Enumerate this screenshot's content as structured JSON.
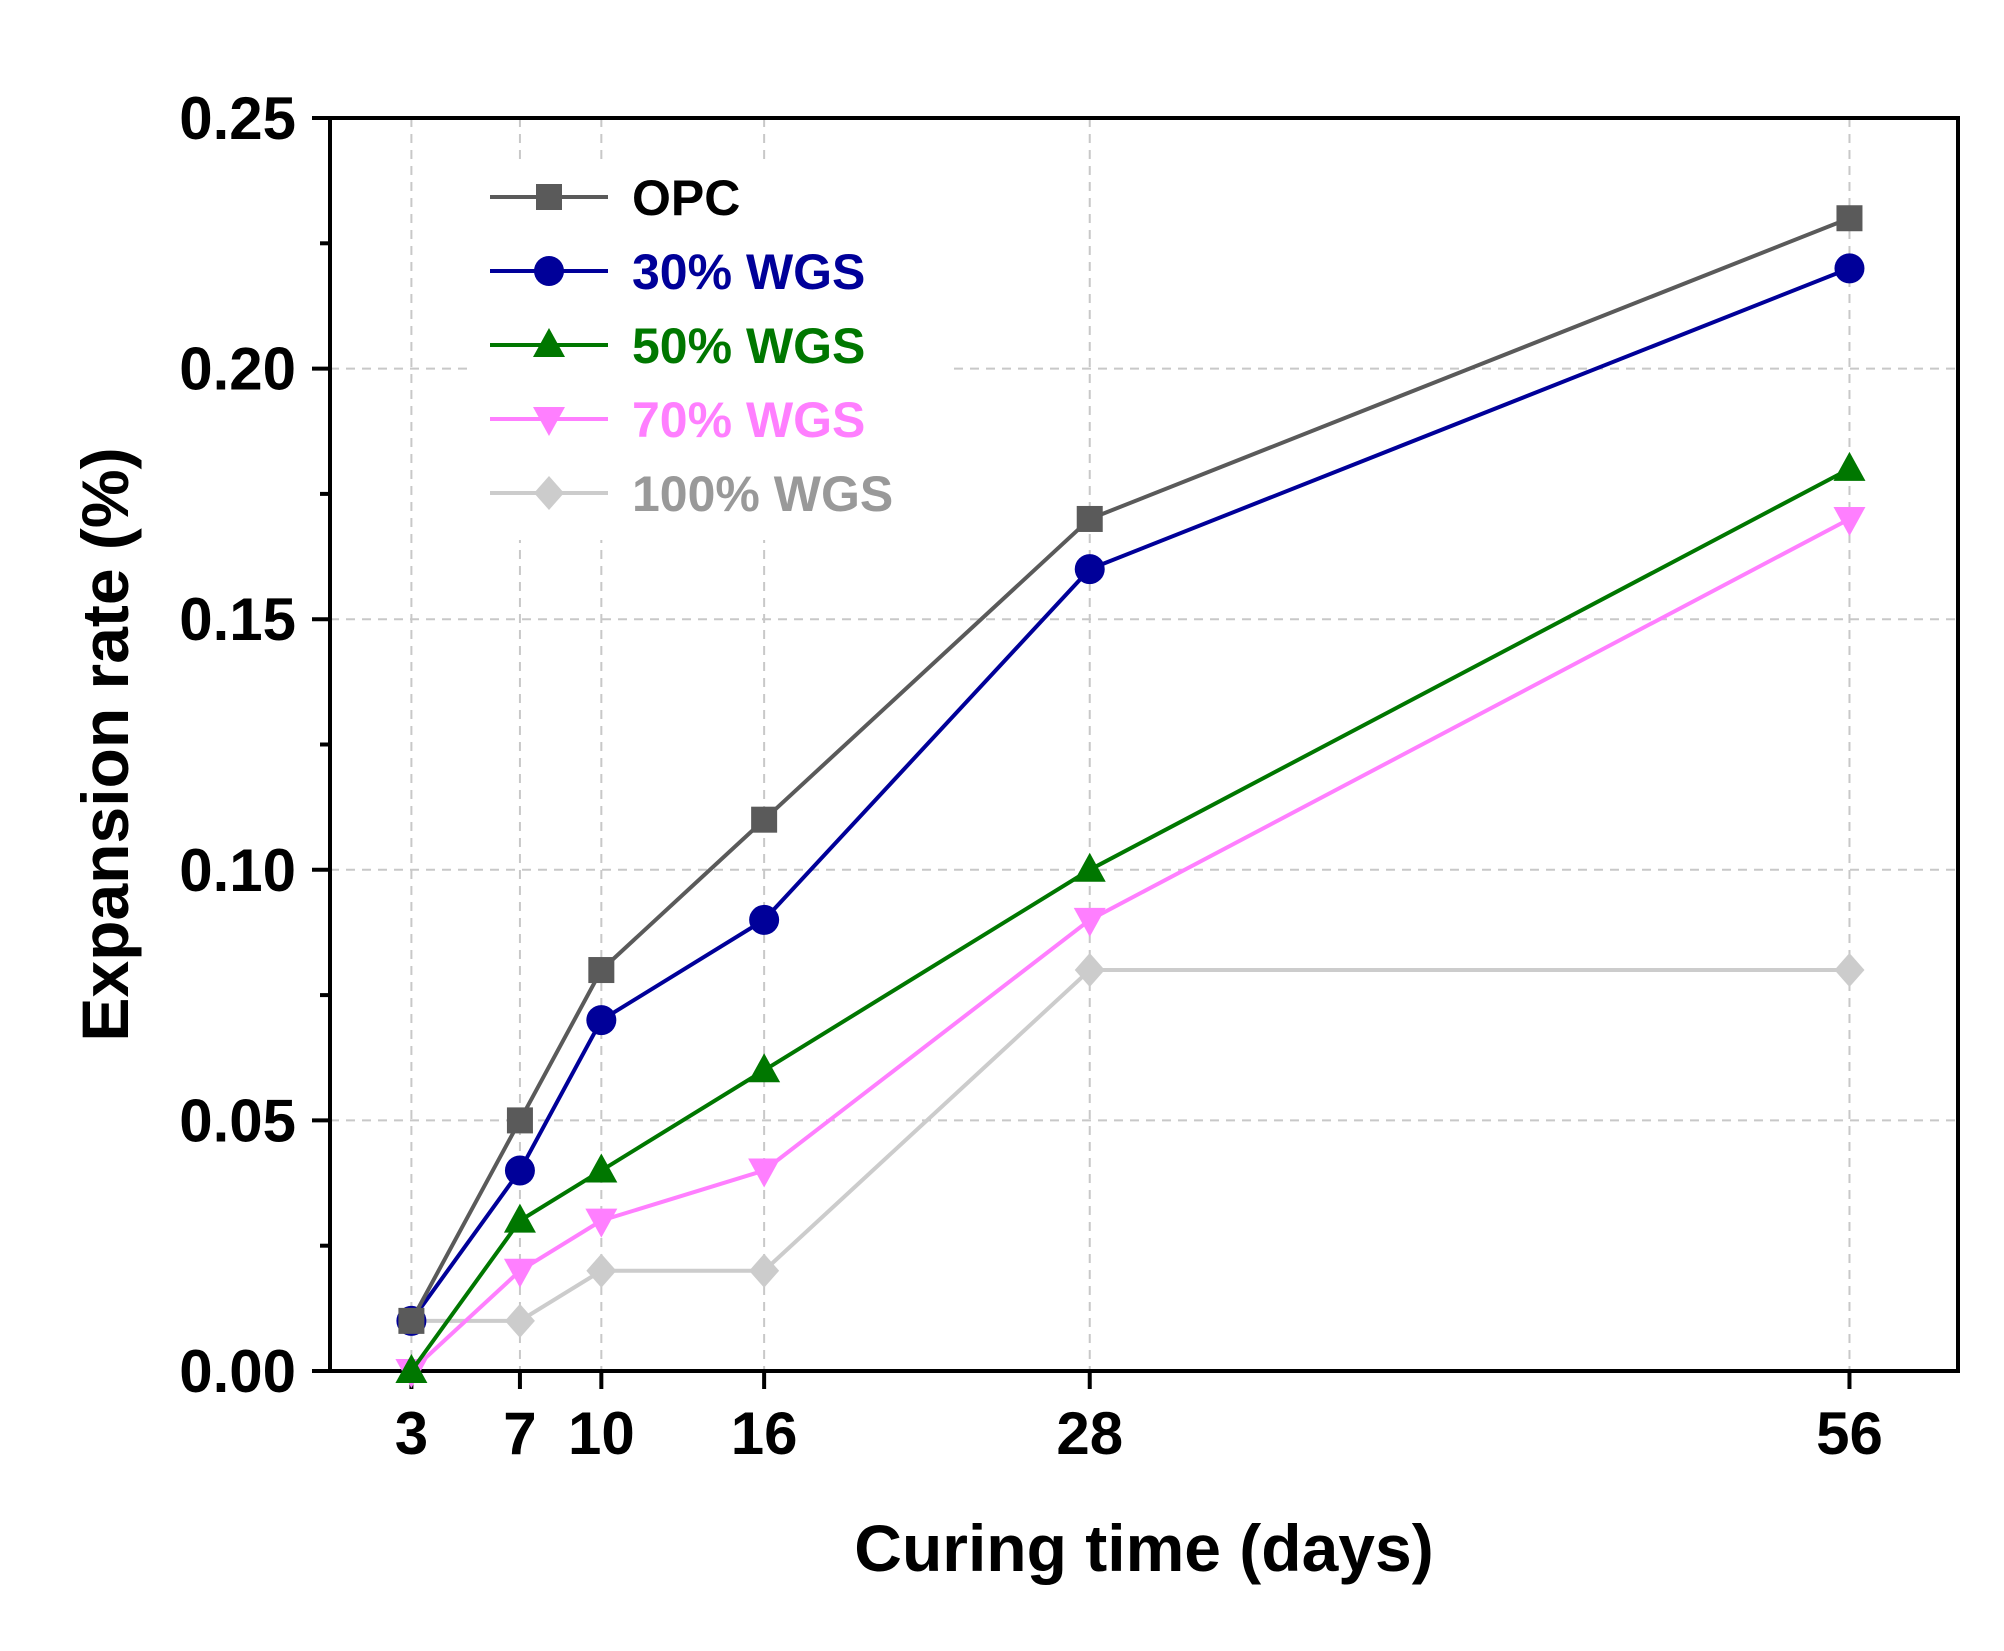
{
  "chart_data": {
    "type": "line",
    "title": "",
    "xlabel": "Curing time (days)",
    "ylabel": "Expansion rate (%)",
    "x": [
      3,
      7,
      10,
      16,
      28,
      56
    ],
    "x_tick_labels": [
      "3",
      "7",
      "10",
      "16",
      "28",
      "56"
    ],
    "xlim": [
      0,
      60
    ],
    "ylim": [
      0,
      0.25
    ],
    "y_ticks": [
      0.0,
      0.05,
      0.1,
      0.15,
      0.2,
      0.25
    ],
    "y_tick_labels": [
      "0.00",
      "0.05",
      "0.10",
      "0.15",
      "0.20",
      "0.25"
    ],
    "grid": true,
    "legend_position": "top-left",
    "series": [
      {
        "name": "OPC",
        "color": "#5a5a5a",
        "marker": "square",
        "values": [
          0.01,
          0.05,
          0.08,
          0.11,
          0.17,
          0.23
        ]
      },
      {
        "name": "30% WGS",
        "color": "#000099",
        "marker": "circle",
        "values": [
          0.01,
          0.04,
          0.07,
          0.09,
          0.16,
          0.22
        ]
      },
      {
        "name": "50% WGS",
        "color": "#007700",
        "marker": "triangle-up",
        "values": [
          0.0,
          0.03,
          0.04,
          0.06,
          0.1,
          0.18
        ]
      },
      {
        "name": "70% WGS",
        "color": "#ff7fff",
        "marker": "triangle-down",
        "values": [
          0.0,
          0.02,
          0.03,
          0.04,
          0.09,
          0.17
        ]
      },
      {
        "name": "100% WGS",
        "color": "#cccccc",
        "marker": "diamond",
        "values": [
          0.01,
          0.01,
          0.02,
          0.02,
          0.08,
          0.08
        ]
      }
    ],
    "legend_text_colors": [
      "#000000",
      "#000099",
      "#007700",
      "#ff7fff",
      "#999999"
    ]
  }
}
